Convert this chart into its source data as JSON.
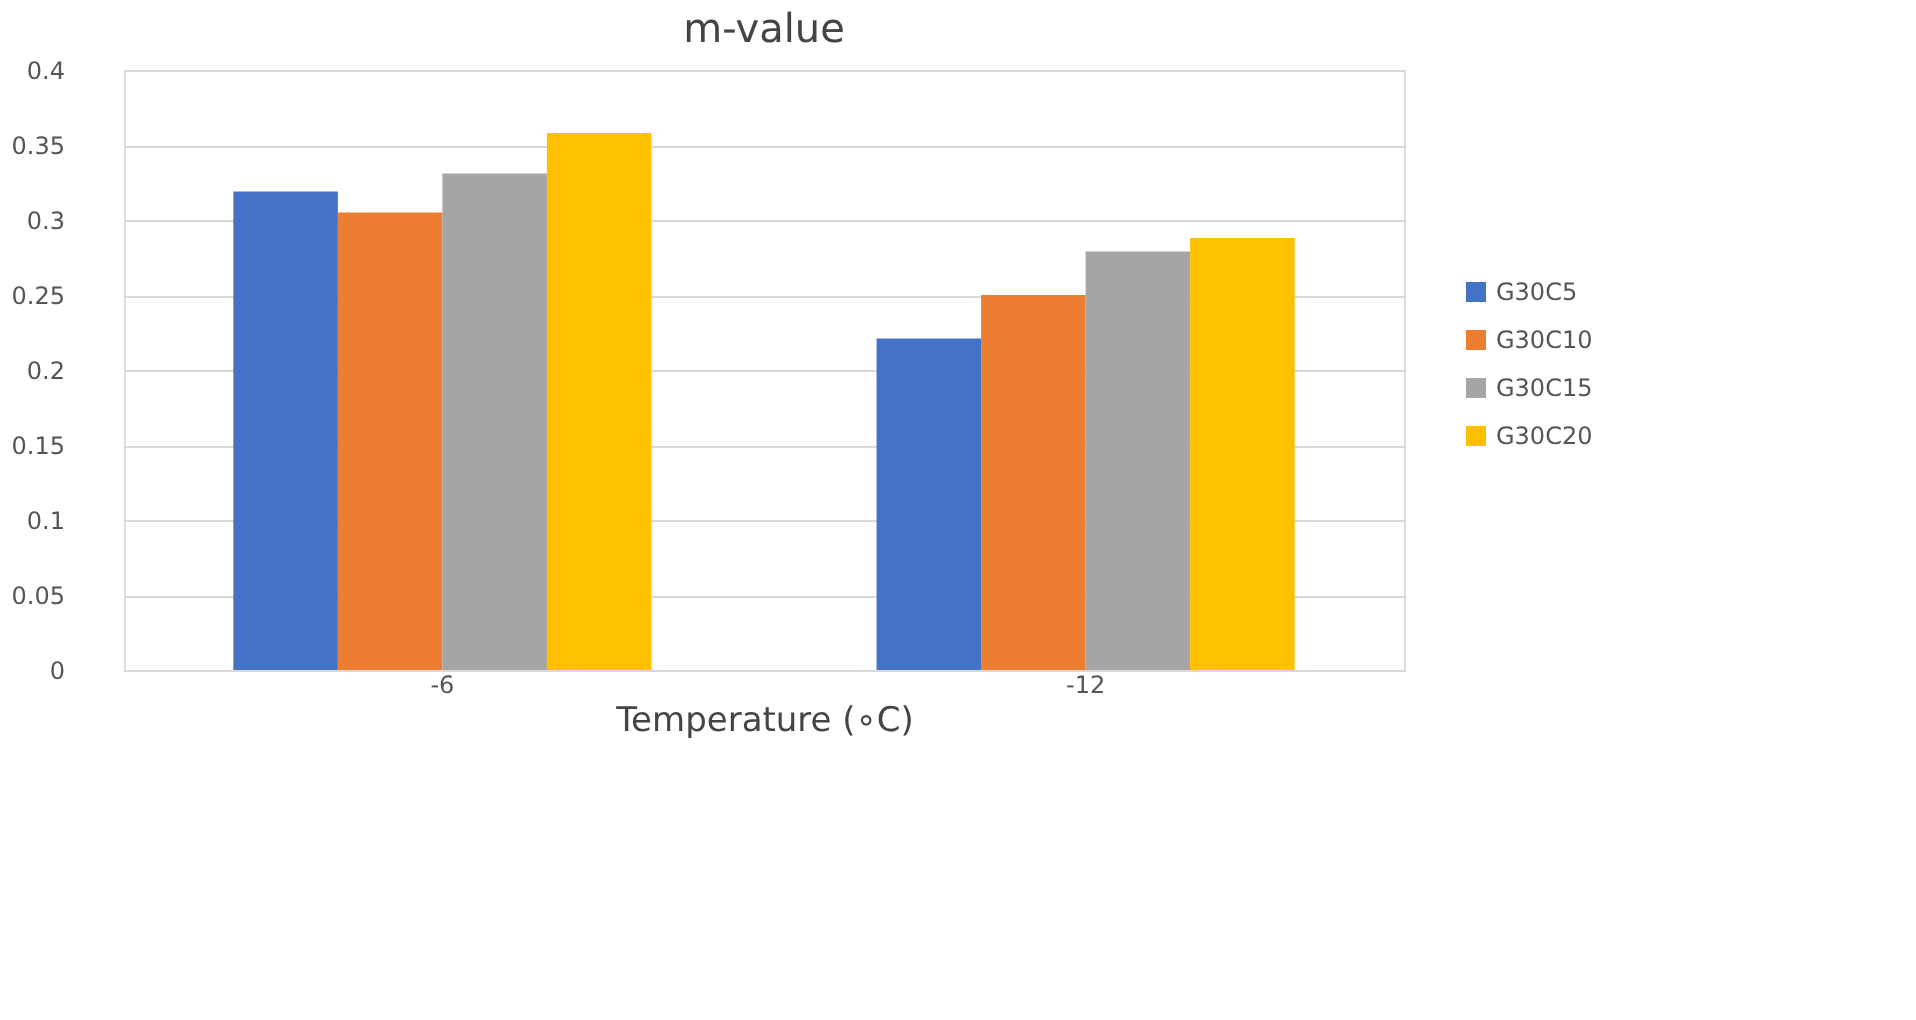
{
  "chart_data": {
    "type": "bar",
    "title": "m-value",
    "xlabel": "Temperature (∘C)",
    "categories": [
      "-6",
      "-12"
    ],
    "series": [
      {
        "name": "G30C5",
        "color": "#4472c4",
        "values": [
          0.319,
          0.221
        ]
      },
      {
        "name": "G30C10",
        "color": "#ed7d31",
        "values": [
          0.305,
          0.25
        ]
      },
      {
        "name": "G30C15",
        "color": "#a5a5a5",
        "values": [
          0.331,
          0.279
        ]
      },
      {
        "name": "G30C20",
        "color": "#ffc000",
        "values": [
          0.358,
          0.288
        ]
      }
    ],
    "ylim": [
      0,
      0.4
    ],
    "yticks": [
      0,
      0.05,
      0.1,
      0.15,
      0.2,
      0.25,
      0.3,
      0.35,
      0.4
    ],
    "grid": "y",
    "legend": "right"
  }
}
